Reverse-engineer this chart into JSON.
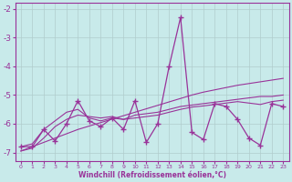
{
  "xlabel": "Windchill (Refroidissement éolien,°C)",
  "ylabel": "",
  "bg_color": "#c8eaea",
  "grid_color": "#b0cccc",
  "line_color": "#993399",
  "x": [
    0,
    1,
    2,
    3,
    4,
    5,
    6,
    7,
    8,
    9,
    10,
    11,
    12,
    13,
    14,
    15,
    16,
    17,
    18,
    19,
    20,
    21,
    22,
    23
  ],
  "y_main": [
    -6.8,
    -6.8,
    -6.2,
    -6.6,
    -6.0,
    -5.2,
    -5.9,
    -6.1,
    -5.8,
    -6.2,
    -5.2,
    -6.65,
    -6.0,
    -4.0,
    -2.3,
    -6.3,
    -6.55,
    -5.3,
    -5.4,
    -5.85,
    -6.5,
    -6.75,
    -5.3,
    -5.4
  ],
  "y_smooth1": [
    -6.8,
    -6.7,
    -6.2,
    -5.9,
    -5.6,
    -5.5,
    -5.8,
    -5.9,
    -5.8,
    -5.85,
    -5.7,
    -5.65,
    -5.6,
    -5.5,
    -5.4,
    -5.35,
    -5.3,
    -5.25,
    -5.2,
    -5.15,
    -5.1,
    -5.05,
    -5.05,
    -5.0
  ],
  "y_smooth2": [
    -6.95,
    -6.85,
    -6.5,
    -6.1,
    -5.85,
    -5.7,
    -5.75,
    -5.8,
    -5.75,
    -5.85,
    -5.8,
    -5.75,
    -5.7,
    -5.6,
    -5.5,
    -5.42,
    -5.38,
    -5.33,
    -5.28,
    -5.23,
    -5.28,
    -5.33,
    -5.23,
    -5.18
  ],
  "y_linear": [
    -6.95,
    -6.8,
    -6.65,
    -6.5,
    -6.35,
    -6.2,
    -6.08,
    -5.96,
    -5.84,
    -5.72,
    -5.6,
    -5.48,
    -5.36,
    -5.24,
    -5.12,
    -5.0,
    -4.9,
    -4.82,
    -4.74,
    -4.66,
    -4.6,
    -4.54,
    -4.48,
    -4.42
  ],
  "xlim": [
    -0.5,
    23.5
  ],
  "ylim": [
    -7.3,
    -1.8
  ],
  "yticks": [
    -7,
    -6,
    -5,
    -4,
    -3,
    -2
  ],
  "xticks": [
    0,
    1,
    2,
    3,
    4,
    5,
    6,
    7,
    8,
    9,
    10,
    11,
    12,
    13,
    14,
    15,
    16,
    17,
    18,
    19,
    20,
    21,
    22,
    23
  ]
}
